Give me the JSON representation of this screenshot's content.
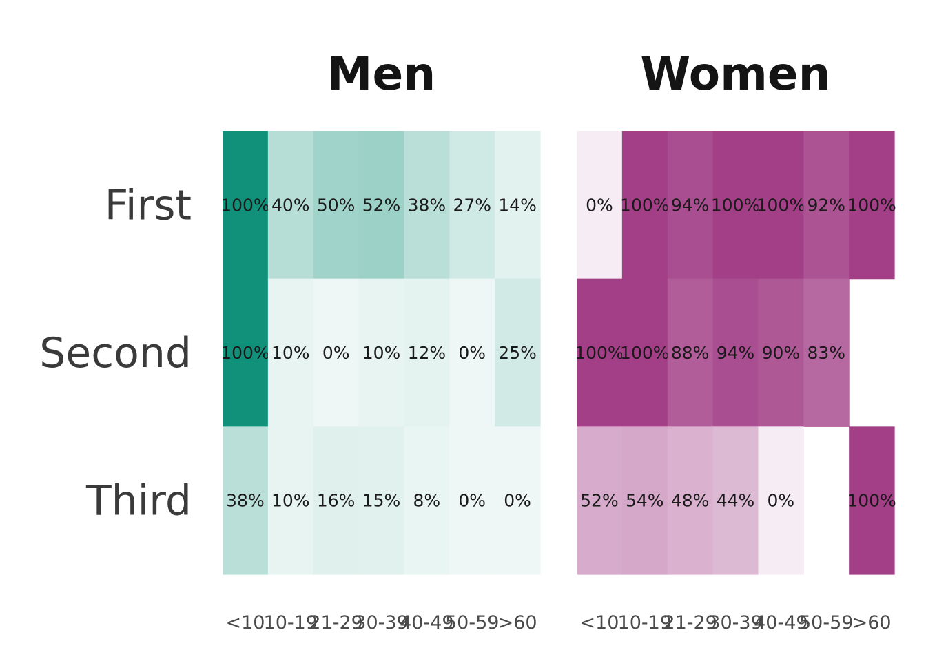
{
  "chart_data": {
    "type": "heatmap",
    "rows": [
      "First",
      "Second",
      "Third"
    ],
    "columns": [
      "<10",
      "10-19",
      "21-29",
      "30-39",
      "40-49",
      "50-59",
      ">60"
    ],
    "value_unit": "%",
    "panels": [
      {
        "title": "Men",
        "color_scale": {
          "low": "#eef7f5",
          "high": "#11917a"
        },
        "values": [
          [
            100,
            40,
            50,
            52,
            38,
            27,
            14
          ],
          [
            100,
            10,
            0,
            10,
            12,
            0,
            25
          ],
          [
            38,
            10,
            16,
            15,
            8,
            0,
            0
          ]
        ]
      },
      {
        "title": "Women",
        "color_scale": {
          "low": "#f6ecf4",
          "high": "#a23f86"
        },
        "values": [
          [
            0,
            100,
            94,
            100,
            100,
            92,
            100
          ],
          [
            100,
            100,
            88,
            94,
            90,
            83,
            null
          ],
          [
            52,
            54,
            48,
            44,
            0,
            null,
            100
          ]
        ]
      }
    ]
  }
}
